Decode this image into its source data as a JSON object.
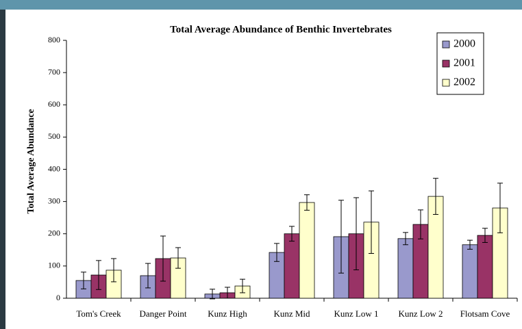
{
  "chart_data": {
    "type": "bar",
    "title": "Total Average Abundance of Benthic Invertebrates",
    "y_label": "Total Average Abundance",
    "categories": [
      "Tom's Creek",
      "Danger Point",
      "Kunz High",
      "Kunz Mid",
      "Kunz Low 1",
      "Kunz Low 2",
      "Flotsam Cove"
    ],
    "series": [
      {
        "name": "2000",
        "color": "#9999cc",
        "values": [
          55,
          70,
          13,
          142,
          191,
          185,
          166
        ],
        "errors": [
          26,
          38,
          15,
          28,
          113,
          19,
          14
        ]
      },
      {
        "name": "2001",
        "color": "#993366",
        "values": [
          72,
          123,
          17,
          200,
          200,
          229,
          195
        ],
        "errors": [
          45,
          70,
          17,
          23,
          112,
          45,
          22
        ]
      },
      {
        "name": "2002",
        "color": "#ffffcc",
        "values": [
          87,
          125,
          38,
          297,
          236,
          316,
          280
        ],
        "errors": [
          36,
          32,
          21,
          24,
          97,
          56,
          77
        ]
      }
    ],
    "ylim": [
      0,
      800
    ],
    "yticks": [
      0,
      100,
      200,
      300,
      400,
      500,
      600,
      700,
      800
    ],
    "grid": false,
    "legend": "top-right"
  }
}
